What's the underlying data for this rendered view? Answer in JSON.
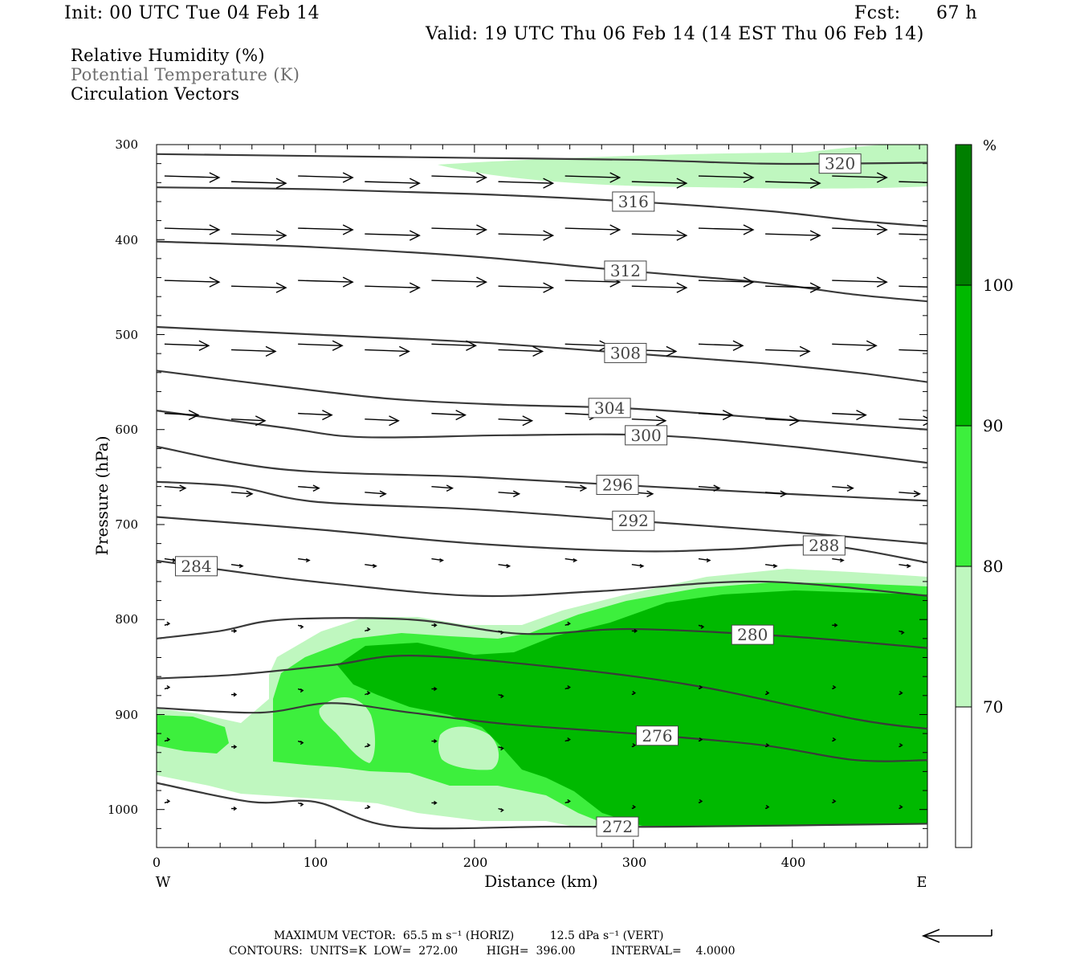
{
  "header": {
    "init": "Init: 00 UTC Tue 04 Feb 14",
    "fcst_label": "Fcst:",
    "fcst_value": "67 h",
    "valid": "Valid: 19 UTC Thu 06 Feb 14 (14 EST Thu 06 Feb 14)"
  },
  "titles": {
    "rh": "Relative Humidity (%)",
    "theta": "Potential Temperature (K)",
    "vectors": "Circulation Vectors"
  },
  "chart_data": {
    "type": "heatmap",
    "xlabel": "Distance (km)",
    "ylabel": "Pressure (hPa)",
    "xlim": [
      0,
      485
    ],
    "ylim": [
      300,
      1040
    ],
    "x_ticks": [
      "0",
      "100",
      "200",
      "300",
      "400"
    ],
    "y_ticks": [
      "300",
      "400",
      "500",
      "600",
      "700",
      "800",
      "900",
      "1000"
    ],
    "x_end_labels": {
      "left": "W",
      "right": "E"
    },
    "colorbar": {
      "unit": "%",
      "levels": [
        "70",
        "80",
        "90",
        "100"
      ],
      "colors": [
        "#ffffff",
        "#bff7bf",
        "#3def3d",
        "#00b900",
        "#007f00"
      ]
    },
    "theta_contours": [
      {
        "label": "320",
        "points": [
          [
            0,
            310
          ],
          [
            100,
            312
          ],
          [
            200,
            314
          ],
          [
            300,
            316
          ],
          [
            380,
            320
          ],
          [
            430,
            320
          ],
          [
            485,
            319
          ]
        ]
      },
      {
        "label": "316",
        "points": [
          [
            0,
            345
          ],
          [
            100,
            347
          ],
          [
            200,
            352
          ],
          [
            300,
            360
          ],
          [
            385,
            370
          ],
          [
            440,
            380
          ],
          [
            485,
            386
          ]
        ]
      },
      {
        "label": "312",
        "points": [
          [
            0,
            402
          ],
          [
            100,
            408
          ],
          [
            200,
            418
          ],
          [
            290,
            432
          ],
          [
            380,
            445
          ],
          [
            440,
            458
          ],
          [
            485,
            465
          ]
        ]
      },
      {
        "label": "308",
        "points": [
          [
            0,
            492
          ],
          [
            100,
            500
          ],
          [
            200,
            508
          ],
          [
            300,
            520
          ],
          [
            380,
            530
          ],
          [
            440,
            540
          ],
          [
            485,
            550
          ]
        ]
      },
      {
        "label": "304",
        "points": [
          [
            0,
            538
          ],
          [
            80,
            555
          ],
          [
            150,
            568
          ],
          [
            220,
            574
          ],
          [
            300,
            578
          ],
          [
            400,
            590
          ],
          [
            485,
            600
          ]
        ]
      },
      {
        "label": "300",
        "points": [
          [
            0,
            580
          ],
          [
            80,
            598
          ],
          [
            130,
            608
          ],
          [
            220,
            606
          ],
          [
            310,
            606
          ],
          [
            400,
            618
          ],
          [
            485,
            635
          ]
        ]
      },
      {
        "label": "296",
        "points": [
          [
            0,
            618
          ],
          [
            80,
            642
          ],
          [
            200,
            650
          ],
          [
            310,
            660
          ],
          [
            400,
            668
          ],
          [
            485,
            675
          ]
        ]
      },
      {
        "label": "292",
        "points": [
          [
            0,
            655
          ],
          [
            50,
            660
          ],
          [
            100,
            676
          ],
          [
            200,
            684
          ],
          [
            300,
            696
          ],
          [
            400,
            708
          ],
          [
            485,
            720
          ]
        ]
      },
      {
        "label": "288",
        "points": [
          [
            0,
            692
          ],
          [
            100,
            705
          ],
          [
            200,
            720
          ],
          [
            300,
            728
          ],
          [
            360,
            726
          ],
          [
            420,
            722
          ],
          [
            485,
            740
          ]
        ]
      },
      {
        "label": "284",
        "points": [
          [
            0,
            738
          ],
          [
            60,
            752
          ],
          [
            110,
            762
          ],
          [
            200,
            775
          ],
          [
            280,
            770
          ],
          [
            380,
            760
          ],
          [
            485,
            775
          ]
        ]
      },
      {
        "label": "280",
        "points": [
          [
            0,
            820
          ],
          [
            40,
            812
          ],
          [
            80,
            800
          ],
          [
            160,
            800
          ],
          [
            230,
            815
          ],
          [
            300,
            810
          ],
          [
            400,
            818
          ],
          [
            485,
            830
          ]
        ]
      },
      {
        "label": "",
        "points": [
          [
            0,
            862
          ],
          [
            50,
            858
          ],
          [
            110,
            848
          ],
          [
            160,
            838
          ],
          [
            250,
            850
          ],
          [
            340,
            870
          ],
          [
            440,
            905
          ],
          [
            485,
            915
          ]
        ]
      },
      {
        "label": "276",
        "points": [
          [
            0,
            893
          ],
          [
            65,
            898
          ],
          [
            110,
            888
          ],
          [
            160,
            898
          ],
          [
            220,
            910
          ],
          [
            300,
            920
          ],
          [
            380,
            932
          ],
          [
            440,
            948
          ],
          [
            485,
            948
          ]
        ]
      },
      {
        "label": "272",
        "points": [
          [
            0,
            972
          ],
          [
            60,
            992
          ],
          [
            100,
            992
          ],
          [
            150,
            1018
          ],
          [
            250,
            1018
          ],
          [
            330,
            1018
          ],
          [
            485,
            1015
          ]
        ]
      }
    ]
  },
  "footer": {
    "max_vector": "MAXIMUM VECTOR:  65.5 m s⁻¹ (HORIZ)          12.5 dPa s⁻¹ (VERT)",
    "contours": "CONTOURS:  UNITS=K  LOW=  272.00        HIGH=  396.00          INTERVAL=    4.0000"
  }
}
